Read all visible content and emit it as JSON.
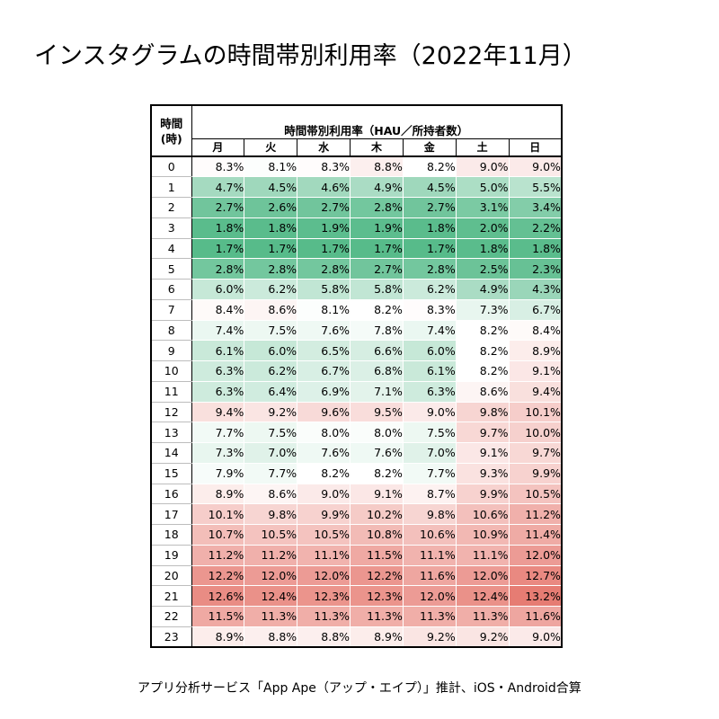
{
  "title": "インスタグラムの時間帯別利用率（2022年11月）",
  "source": "アプリ分析サービス「App Ape（アップ・エイプ）」推計、iOS・Android合算",
  "colors": {
    "low": "#57bb8a",
    "mid": "#ffffff",
    "high": "#e67c73"
  },
  "chart_data": {
    "type": "heatmap",
    "title": "インスタグラムの時間帯別利用率（2022年11月）",
    "row_header": "時間\n(時)",
    "column_group_label": "時間帯別利用率（HAU／所持者数）",
    "columns": [
      "月",
      "火",
      "水",
      "木",
      "金",
      "土",
      "日"
    ],
    "rows": [
      "0",
      "1",
      "2",
      "3",
      "4",
      "5",
      "6",
      "7",
      "8",
      "9",
      "10",
      "11",
      "12",
      "13",
      "14",
      "15",
      "16",
      "17",
      "18",
      "19",
      "20",
      "21",
      "22",
      "23"
    ],
    "values": [
      [
        "8.3%",
        "8.1%",
        "8.3%",
        "8.8%",
        "8.2%",
        "9.0%",
        "9.0%"
      ],
      [
        "4.7%",
        "4.5%",
        "4.6%",
        "4.9%",
        "4.5%",
        "5.0%",
        "5.5%"
      ],
      [
        "2.7%",
        "2.6%",
        "2.7%",
        "2.8%",
        "2.7%",
        "3.1%",
        "3.4%"
      ],
      [
        "1.8%",
        "1.8%",
        "1.9%",
        "1.9%",
        "1.8%",
        "2.0%",
        "2.2%"
      ],
      [
        "1.7%",
        "1.7%",
        "1.7%",
        "1.7%",
        "1.7%",
        "1.8%",
        "1.8%"
      ],
      [
        "2.8%",
        "2.8%",
        "2.8%",
        "2.7%",
        "2.8%",
        "2.5%",
        "2.3%"
      ],
      [
        "6.0%",
        "6.2%",
        "5.8%",
        "5.8%",
        "6.2%",
        "4.9%",
        "4.3%"
      ],
      [
        "8.4%",
        "8.6%",
        "8.1%",
        "8.2%",
        "8.3%",
        "7.3%",
        "6.7%"
      ],
      [
        "7.4%",
        "7.5%",
        "7.6%",
        "7.8%",
        "7.4%",
        "8.2%",
        "8.4%"
      ],
      [
        "6.1%",
        "6.0%",
        "6.5%",
        "6.6%",
        "6.0%",
        "8.2%",
        "8.9%"
      ],
      [
        "6.3%",
        "6.2%",
        "6.7%",
        "6.8%",
        "6.1%",
        "8.2%",
        "9.1%"
      ],
      [
        "6.3%",
        "6.4%",
        "6.9%",
        "7.1%",
        "6.3%",
        "8.6%",
        "9.4%"
      ],
      [
        "9.4%",
        "9.2%",
        "9.6%",
        "9.5%",
        "9.0%",
        "9.8%",
        "10.1%"
      ],
      [
        "7.7%",
        "7.5%",
        "8.0%",
        "8.0%",
        "7.5%",
        "9.7%",
        "10.0%"
      ],
      [
        "7.3%",
        "7.0%",
        "7.6%",
        "7.6%",
        "7.0%",
        "9.1%",
        "9.7%"
      ],
      [
        "7.9%",
        "7.7%",
        "8.2%",
        "8.2%",
        "7.7%",
        "9.3%",
        "9.9%"
      ],
      [
        "8.9%",
        "8.6%",
        "9.0%",
        "9.1%",
        "8.7%",
        "9.9%",
        "10.5%"
      ],
      [
        "10.1%",
        "9.8%",
        "9.9%",
        "10.2%",
        "9.8%",
        "10.6%",
        "11.2%"
      ],
      [
        "10.7%",
        "10.5%",
        "10.5%",
        "10.8%",
        "10.6%",
        "10.9%",
        "11.4%"
      ],
      [
        "11.2%",
        "11.2%",
        "11.1%",
        "11.5%",
        "11.1%",
        "11.1%",
        "12.0%"
      ],
      [
        "12.2%",
        "12.0%",
        "12.0%",
        "12.2%",
        "11.6%",
        "12.0%",
        "12.7%"
      ],
      [
        "12.6%",
        "12.4%",
        "12.3%",
        "12.3%",
        "12.0%",
        "12.4%",
        "13.2%"
      ],
      [
        "11.5%",
        "11.3%",
        "11.3%",
        "11.3%",
        "11.3%",
        "11.3%",
        "11.6%"
      ],
      [
        "8.9%",
        "8.8%",
        "8.8%",
        "8.9%",
        "9.2%",
        "9.2%",
        "9.0%"
      ]
    ]
  }
}
